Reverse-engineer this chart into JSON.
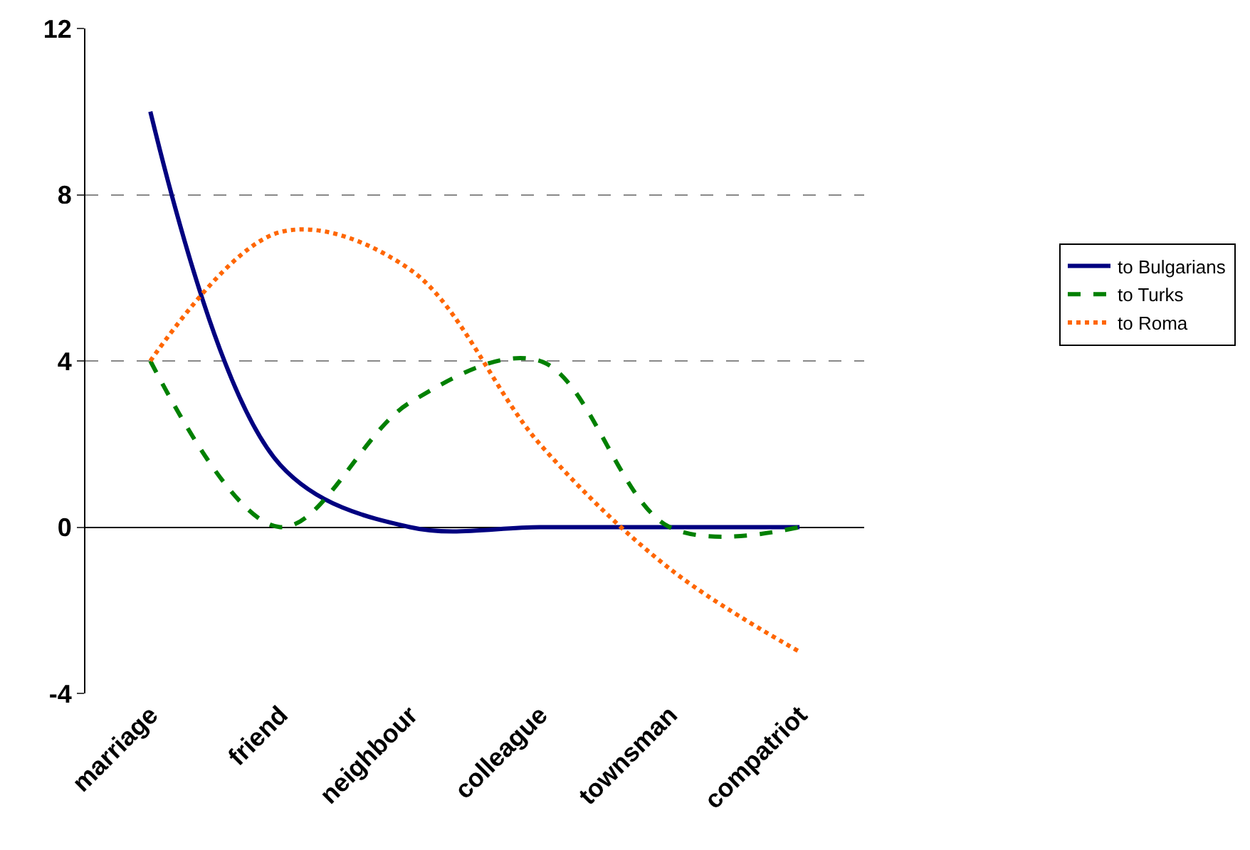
{
  "chart_data": {
    "type": "line",
    "categories": [
      "marriage",
      "friend",
      "neighbour",
      "colleague",
      "townsman",
      "compatriot"
    ],
    "series": [
      {
        "name": "to Bulgarians",
        "color": "#000080",
        "line_style": "solid",
        "values": [
          10,
          1.5,
          0,
          0,
          0,
          0
        ]
      },
      {
        "name": "to Turks",
        "color": "#008000",
        "line_style": "dashed",
        "values": [
          4,
          0,
          3,
          4,
          0,
          0
        ]
      },
      {
        "name": "to Roma",
        "color": "#ff6600",
        "line_style": "dotted",
        "values": [
          4,
          7.1,
          6.2,
          2,
          -1,
          -3
        ]
      }
    ],
    "ylim": [
      -4,
      12
    ],
    "yticks": [
      -4,
      0,
      4,
      8,
      12
    ],
    "grid": "y",
    "legend": "right",
    "marker": "none"
  }
}
